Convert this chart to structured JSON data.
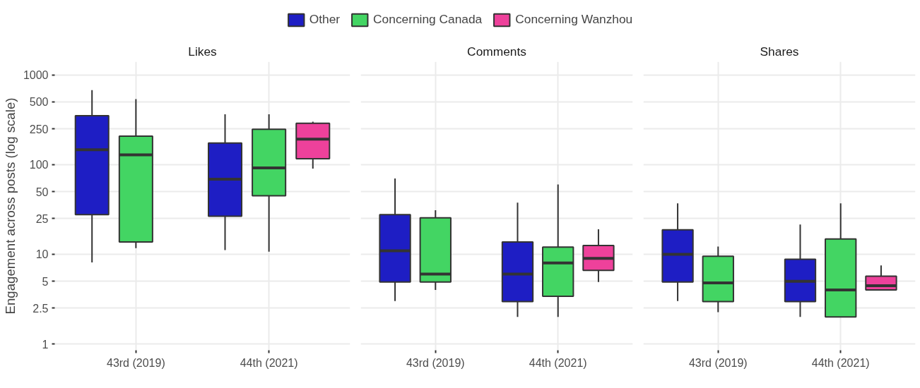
{
  "chart_data": [
    {
      "type": "box",
      "title": "Likes",
      "ylabel": "Engagement across posts (log scale)",
      "categories": [
        "43rd (2019)",
        "44th (2021)"
      ],
      "log": true,
      "ylim": [
        0.85,
        1400
      ],
      "yticks": [
        1,
        2.5,
        5,
        10,
        25,
        50,
        100,
        250,
        500,
        1000
      ],
      "grid": true,
      "legend": "top",
      "series": [
        {
          "name": "Other",
          "color": "#1e1ec4",
          "boxes": [
            {
              "low": 8.1,
              "q1": 27.6,
              "median": 146,
              "q3": 350,
              "high": 676
            },
            {
              "low": 11.1,
              "q1": 26.5,
              "median": 68.6,
              "q3": 174,
              "high": 364
            }
          ]
        },
        {
          "name": "Concerning Canada",
          "color": "#43d563",
          "boxes": [
            {
              "low": 11.7,
              "q1": 13.7,
              "median": 128,
              "q3": 207,
              "high": 537
            },
            {
              "low": 10.7,
              "q1": 44.8,
              "median": 91.8,
              "q3": 247,
              "high": 364
            }
          ]
        },
        {
          "name": "Concerning Wanzhou",
          "color": "#ee419b",
          "boxes": [
            null,
            {
              "low": 90,
              "q1": 116,
              "median": 192,
              "q3": 288,
              "high": 300
            }
          ]
        }
      ]
    },
    {
      "type": "box",
      "title": "Comments",
      "categories": [
        "43rd (2019)",
        "44th (2021)"
      ],
      "log": true,
      "ylim": [
        0.85,
        1400
      ],
      "yticks": [
        1,
        2.5,
        5,
        10,
        25,
        50,
        100,
        250,
        500,
        1000
      ],
      "grid": true,
      "tick_labels": "x",
      "series": [
        {
          "color": "#1e1ec4",
          "boxes": [
            {
              "low": 3.0,
              "q1": 4.9,
              "median": 10.9,
              "q3": 27.6,
              "high": 70
            },
            {
              "low": 2.0,
              "q1": 2.96,
              "median": 6.0,
              "q3": 13.7,
              "high": 37.6
            }
          ]
        },
        {
          "color": "#43d563",
          "boxes": [
            {
              "low": 4.0,
              "q1": 4.9,
              "median": 6.0,
              "q3": 25.5,
              "high": 31
            },
            {
              "low": 2.0,
              "q1": 3.4,
              "median": 8.0,
              "q3": 12.0,
              "high": 60
            }
          ]
        },
        {
          "color": "#ee419b",
          "boxes": [
            null,
            {
              "low": 4.9,
              "q1": 6.6,
              "median": 9.0,
              "q3": 12.5,
              "high": 19
            }
          ]
        }
      ]
    },
    {
      "type": "box",
      "title": "Shares",
      "categories": [
        "43rd (2019)",
        "44th (2021)"
      ],
      "log": true,
      "ylim": [
        0.85,
        1400
      ],
      "yticks": [
        1,
        2.5,
        5,
        10,
        25,
        50,
        100,
        250,
        500,
        1000
      ],
      "grid": true,
      "tick_labels": "x",
      "series": [
        {
          "color": "#1e1ec4",
          "boxes": [
            {
              "low": 3.0,
              "q1": 4.9,
              "median": 10,
              "q3": 18.7,
              "high": 37
            },
            {
              "low": 2.0,
              "q1": 2.96,
              "median": 5.0,
              "q3": 8.8,
              "high": 21.4
            }
          ]
        },
        {
          "color": "#43d563",
          "boxes": [
            {
              "low": 2.26,
              "q1": 2.96,
              "median": 4.8,
              "q3": 9.5,
              "high": 12.2
            },
            {
              "low": 2.0,
              "q1": 2.0,
              "median": 4.0,
              "q3": 14.8,
              "high": 37
            }
          ]
        },
        {
          "color": "#ee419b",
          "boxes": [
            null,
            {
              "low": 4.0,
              "q1": 4.0,
              "median": 4.45,
              "q3": 5.7,
              "high": 7.5
            }
          ]
        }
      ]
    }
  ]
}
